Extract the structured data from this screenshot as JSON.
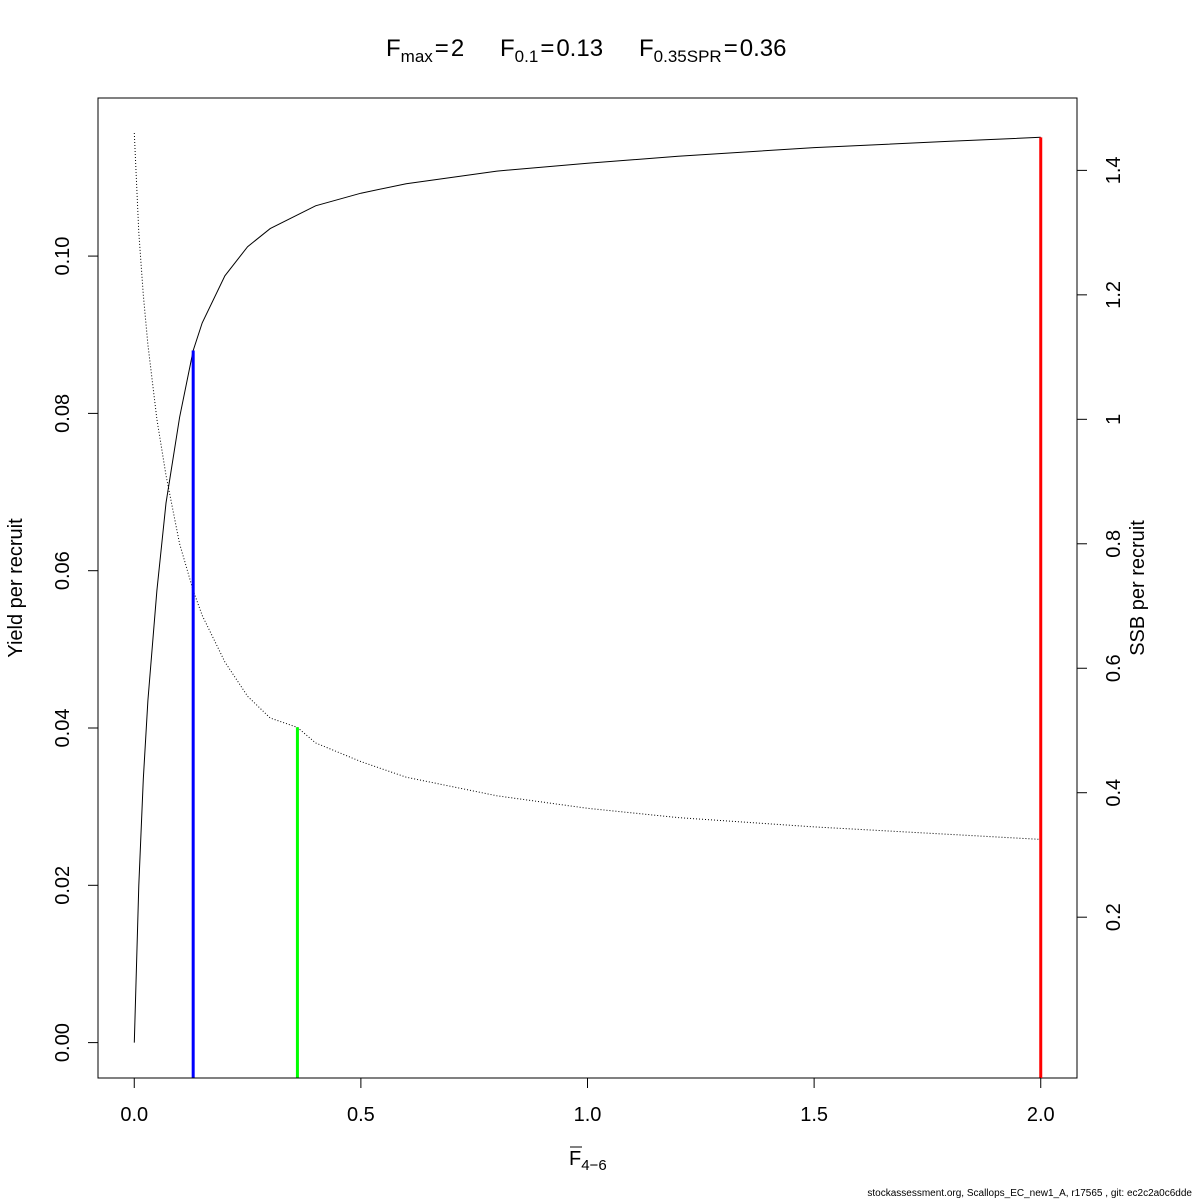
{
  "chart_data": {
    "type": "line",
    "title_parts": {
      "fmax": {
        "sym": "F",
        "sub": "max",
        "rel": "=",
        "val": "2"
      },
      "f01": {
        "sym": "F",
        "sub": "0.1",
        "rel": "=",
        "val": "0.13"
      },
      "f035": {
        "sym": "F",
        "sub": "0.35SPR",
        "rel": "=",
        "val": "0.36"
      }
    },
    "xlabel": {
      "sym": "F",
      "sub": "4−6"
    },
    "ylabel": "Yield per recruit",
    "y2label": "SSB per recruit",
    "xlim": [
      -0.08,
      2.08
    ],
    "ylim": [
      -0.0045,
      0.1201
    ],
    "y2lim": [
      -0.0584,
      1.5163
    ],
    "x_ticks": [
      "0.0",
      "0.5",
      "1.0",
      "1.5",
      "2.0"
    ],
    "x_tick_values": [
      0,
      0.5,
      1.0,
      1.5,
      2.0
    ],
    "y_ticks": [
      "0.00",
      "0.02",
      "0.04",
      "0.06",
      "0.08",
      "0.10"
    ],
    "y_tick_values": [
      0,
      0.02,
      0.04,
      0.06,
      0.08,
      0.1
    ],
    "y2_ticks": [
      "0.2",
      "0.4",
      "0.6",
      "0.8",
      "1",
      "1.2",
      "1.4"
    ],
    "y2_tick_values": [
      0.2,
      0.4,
      0.6,
      0.8,
      1.0,
      1.2,
      1.4
    ],
    "series": [
      {
        "axis": "left",
        "style": "solid",
        "color": "#000000",
        "x": [
          0,
          0.01,
          0.02,
          0.03,
          0.05,
          0.07,
          0.1,
          0.13,
          0.15,
          0.2,
          0.25,
          0.3,
          0.4,
          0.5,
          0.6,
          0.8,
          1.0,
          1.2,
          1.5,
          1.8,
          2.0
        ],
        "y": [
          0.0,
          0.02,
          0.0335,
          0.0435,
          0.0575,
          0.0686,
          0.0795,
          0.088,
          0.0915,
          0.0975,
          0.1012,
          0.1035,
          0.1064,
          0.108,
          0.1092,
          0.1108,
          0.1118,
          0.1127,
          0.1138,
          0.1146,
          0.1151
        ]
      },
      {
        "axis": "right",
        "style": "dotted",
        "color": "#000000",
        "x": [
          0,
          0.01,
          0.02,
          0.03,
          0.05,
          0.07,
          0.1,
          0.13,
          0.15,
          0.2,
          0.25,
          0.3,
          0.36,
          0.4,
          0.5,
          0.6,
          0.8,
          1.0,
          1.2,
          1.5,
          1.8,
          2.0
        ],
        "y": [
          1.46,
          1.3,
          1.2,
          1.12,
          1.0,
          0.91,
          0.8,
          0.725,
          0.685,
          0.61,
          0.555,
          0.52,
          0.505,
          0.48,
          0.45,
          0.425,
          0.395,
          0.375,
          0.36,
          0.345,
          0.333,
          0.325
        ]
      }
    ],
    "reference_lines": [
      {
        "name": "F0.1",
        "x": 0.13,
        "y_top": 0.088,
        "color": "#0000ff"
      },
      {
        "name": "F0.35SPR",
        "x": 0.36,
        "y_top": 0.0401,
        "color": "#00ff00"
      },
      {
        "name": "Fmax",
        "x": 2.0,
        "y_top": 0.1151,
        "color": "#ff0000"
      }
    ]
  },
  "footer": "stockassessment.org, Scallops_EC_new1_A, r17565 , git: ec2c2a0c6dde"
}
